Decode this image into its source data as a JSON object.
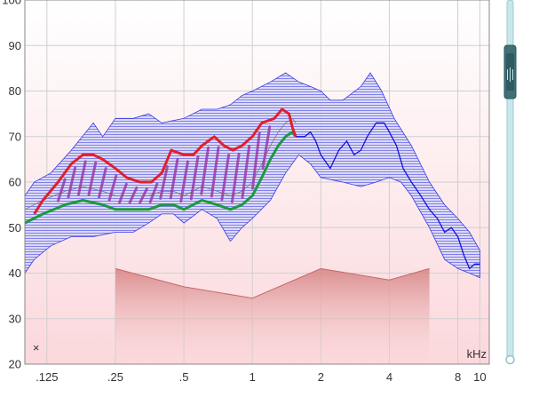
{
  "chart_data": {
    "type": "line",
    "title": "",
    "xlabel": "kHz",
    "ylabel": "",
    "x_scale": "log",
    "xlim": [
      0.1,
      11.0
    ],
    "ylim": [
      20,
      100
    ],
    "grid": true,
    "x_ticks": [
      {
        "v": 0.125,
        "label": ".125"
      },
      {
        "v": 0.25,
        "label": ".25"
      },
      {
        "v": 0.5,
        "label": ".5"
      },
      {
        "v": 1,
        "label": "1"
      },
      {
        "v": 2,
        "label": "2"
      },
      {
        "v": 4,
        "label": "4"
      },
      {
        "v": 8,
        "label": "8"
      },
      {
        "v": 10,
        "label": "10"
      }
    ],
    "y_ticks": [
      20,
      30,
      40,
      50,
      60,
      70,
      80,
      90,
      100
    ],
    "y_tick_labels": [
      "20",
      "30",
      "40",
      "50",
      "60",
      "70",
      "80",
      "90",
      "100"
    ],
    "colors": {
      "band_fill": "#c8c8f4",
      "band_edge": "#3a3ae0",
      "upper_curve": "#e0202c",
      "lower_curve": "#1c9a3c",
      "hatch": "#9a3aa8",
      "blue_curve": "#1414d8",
      "threshold_fill": "#d98a8a",
      "background_top": "#ffffff",
      "background_bottom": "#fbd8dc"
    },
    "marker": {
      "symbol": "×",
      "x": 0.112,
      "y": 23.5
    },
    "series": [
      {
        "role": "band-upper",
        "points": [
          [
            0.1,
            57
          ],
          [
            0.11,
            60
          ],
          [
            0.13,
            62
          ],
          [
            0.16,
            67
          ],
          [
            0.2,
            73
          ],
          [
            0.22,
            70
          ],
          [
            0.25,
            74
          ],
          [
            0.3,
            74
          ],
          [
            0.35,
            75
          ],
          [
            0.4,
            73
          ],
          [
            0.5,
            74
          ],
          [
            0.6,
            76
          ],
          [
            0.7,
            76
          ],
          [
            0.8,
            77
          ],
          [
            0.9,
            79
          ],
          [
            1.0,
            80
          ],
          [
            1.2,
            82
          ],
          [
            1.4,
            84
          ],
          [
            1.6,
            82
          ],
          [
            1.8,
            81
          ],
          [
            2.0,
            80
          ],
          [
            2.2,
            78
          ],
          [
            2.5,
            78
          ],
          [
            3.0,
            81
          ],
          [
            3.3,
            84
          ],
          [
            3.7,
            80
          ],
          [
            4.2,
            74
          ],
          [
            5.0,
            68
          ],
          [
            6.0,
            60
          ],
          [
            7.0,
            55
          ],
          [
            8.0,
            52
          ],
          [
            9.0,
            49
          ],
          [
            10.0,
            45
          ]
        ]
      },
      {
        "role": "band-lower",
        "points": [
          [
            10.0,
            39
          ],
          [
            9.0,
            40
          ],
          [
            8.0,
            41
          ],
          [
            7.0,
            43
          ],
          [
            6.0,
            50
          ],
          [
            5.0,
            57
          ],
          [
            4.5,
            60
          ],
          [
            4.0,
            61
          ],
          [
            3.5,
            60
          ],
          [
            3.0,
            59
          ],
          [
            2.5,
            60
          ],
          [
            2.0,
            61
          ],
          [
            1.8,
            64
          ],
          [
            1.6,
            66
          ],
          [
            1.4,
            62
          ],
          [
            1.2,
            56
          ],
          [
            1.0,
            52
          ],
          [
            0.9,
            50
          ],
          [
            0.8,
            47
          ],
          [
            0.7,
            52
          ],
          [
            0.6,
            54
          ],
          [
            0.5,
            51
          ],
          [
            0.45,
            53
          ],
          [
            0.4,
            53
          ],
          [
            0.35,
            51
          ],
          [
            0.3,
            49
          ],
          [
            0.25,
            49
          ],
          [
            0.2,
            48
          ],
          [
            0.16,
            48
          ],
          [
            0.13,
            46
          ],
          [
            0.11,
            43
          ],
          [
            0.1,
            40
          ]
        ]
      },
      {
        "role": "upper-curve",
        "points": [
          [
            0.11,
            53
          ],
          [
            0.12,
            56
          ],
          [
            0.14,
            60
          ],
          [
            0.16,
            64
          ],
          [
            0.18,
            66
          ],
          [
            0.2,
            66
          ],
          [
            0.22,
            65
          ],
          [
            0.25,
            63
          ],
          [
            0.28,
            61
          ],
          [
            0.32,
            60
          ],
          [
            0.36,
            60
          ],
          [
            0.4,
            62
          ],
          [
            0.44,
            67
          ],
          [
            0.5,
            66
          ],
          [
            0.55,
            66
          ],
          [
            0.6,
            68
          ],
          [
            0.68,
            70
          ],
          [
            0.75,
            68
          ],
          [
            0.82,
            67
          ],
          [
            0.9,
            68
          ],
          [
            1.0,
            70
          ],
          [
            1.1,
            73
          ],
          [
            1.25,
            74
          ],
          [
            1.35,
            76
          ],
          [
            1.45,
            75
          ],
          [
            1.5,
            72
          ],
          [
            1.55,
            70
          ]
        ]
      },
      {
        "role": "lower-curve",
        "points": [
          [
            0.1,
            51
          ],
          [
            0.12,
            53
          ],
          [
            0.15,
            55
          ],
          [
            0.18,
            56
          ],
          [
            0.22,
            55
          ],
          [
            0.25,
            54
          ],
          [
            0.3,
            54
          ],
          [
            0.35,
            54
          ],
          [
            0.4,
            55
          ],
          [
            0.45,
            55
          ],
          [
            0.5,
            54
          ],
          [
            0.6,
            56
          ],
          [
            0.7,
            55
          ],
          [
            0.8,
            54
          ],
          [
            0.9,
            55
          ],
          [
            1.0,
            57
          ],
          [
            1.1,
            61
          ],
          [
            1.2,
            65
          ],
          [
            1.3,
            68
          ],
          [
            1.4,
            70
          ],
          [
            1.5,
            71
          ],
          [
            1.55,
            70
          ]
        ]
      },
      {
        "role": "blue-curve",
        "points": [
          [
            1.55,
            70
          ],
          [
            1.7,
            70
          ],
          [
            1.8,
            71
          ],
          [
            1.9,
            69
          ],
          [
            2.0,
            66
          ],
          [
            2.2,
            63
          ],
          [
            2.4,
            67
          ],
          [
            2.6,
            69
          ],
          [
            2.8,
            66
          ],
          [
            3.0,
            67
          ],
          [
            3.2,
            70
          ],
          [
            3.5,
            73
          ],
          [
            3.8,
            73
          ],
          [
            4.0,
            71
          ],
          [
            4.3,
            68
          ],
          [
            4.6,
            63
          ],
          [
            5.0,
            60
          ],
          [
            5.5,
            57
          ],
          [
            6.0,
            54
          ],
          [
            6.5,
            52
          ],
          [
            7.0,
            49
          ],
          [
            7.5,
            50
          ],
          [
            8.0,
            48
          ],
          [
            8.5,
            44
          ],
          [
            9.0,
            41
          ],
          [
            9.5,
            42
          ],
          [
            10.0,
            42
          ]
        ]
      },
      {
        "role": "threshold",
        "points": [
          [
            0.25,
            41
          ],
          [
            0.5,
            37
          ],
          [
            1.0,
            34.5
          ],
          [
            2.0,
            41
          ],
          [
            4.0,
            38.5
          ],
          [
            6.0,
            41
          ]
        ]
      }
    ]
  }
}
